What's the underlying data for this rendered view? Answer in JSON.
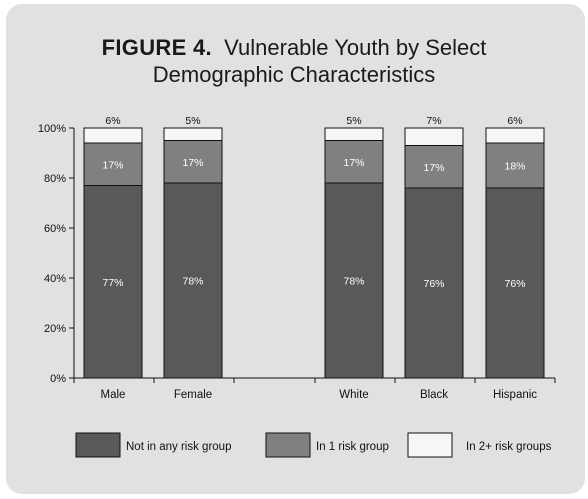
{
  "title": {
    "figure_label": "FIGURE 4.",
    "line1": "Vulnerable Youth by Select",
    "line2": "Demographic Characteristics"
  },
  "colors": {
    "card_background": "#e1e1e1",
    "not_in_any": "#595959",
    "in_1": "#808080",
    "in_2_plus": "#f6f6f6"
  },
  "chart_data": {
    "type": "bar",
    "stacked": true,
    "title": "FIGURE 4. Vulnerable Youth by Select Demographic Characteristics",
    "categories": [
      "Male",
      "Female",
      "White",
      "Black",
      "Hispanic"
    ],
    "series": [
      {
        "name": "Not in any risk group",
        "values": [
          77,
          78,
          78,
          76,
          76
        ],
        "labels": [
          "77%",
          "78%",
          "78%",
          "76%",
          "76%"
        ]
      },
      {
        "name": "In 1 risk group",
        "values": [
          17,
          17,
          17,
          17,
          18
        ],
        "labels": [
          "17%",
          "17%",
          "17%",
          "17%",
          "18%"
        ]
      },
      {
        "name": "In 2+ risk groups",
        "values": [
          6,
          5,
          5,
          7,
          6
        ],
        "labels": [
          "6%",
          "5%",
          "5%",
          "7%",
          "6%"
        ]
      }
    ],
    "ylim": [
      0,
      100
    ],
    "yticks": [
      "0%",
      "20%",
      "40%",
      "60%",
      "80%",
      "100%"
    ],
    "grid": false,
    "legend_position": "bottom",
    "xlabel": "",
    "ylabel": ""
  }
}
